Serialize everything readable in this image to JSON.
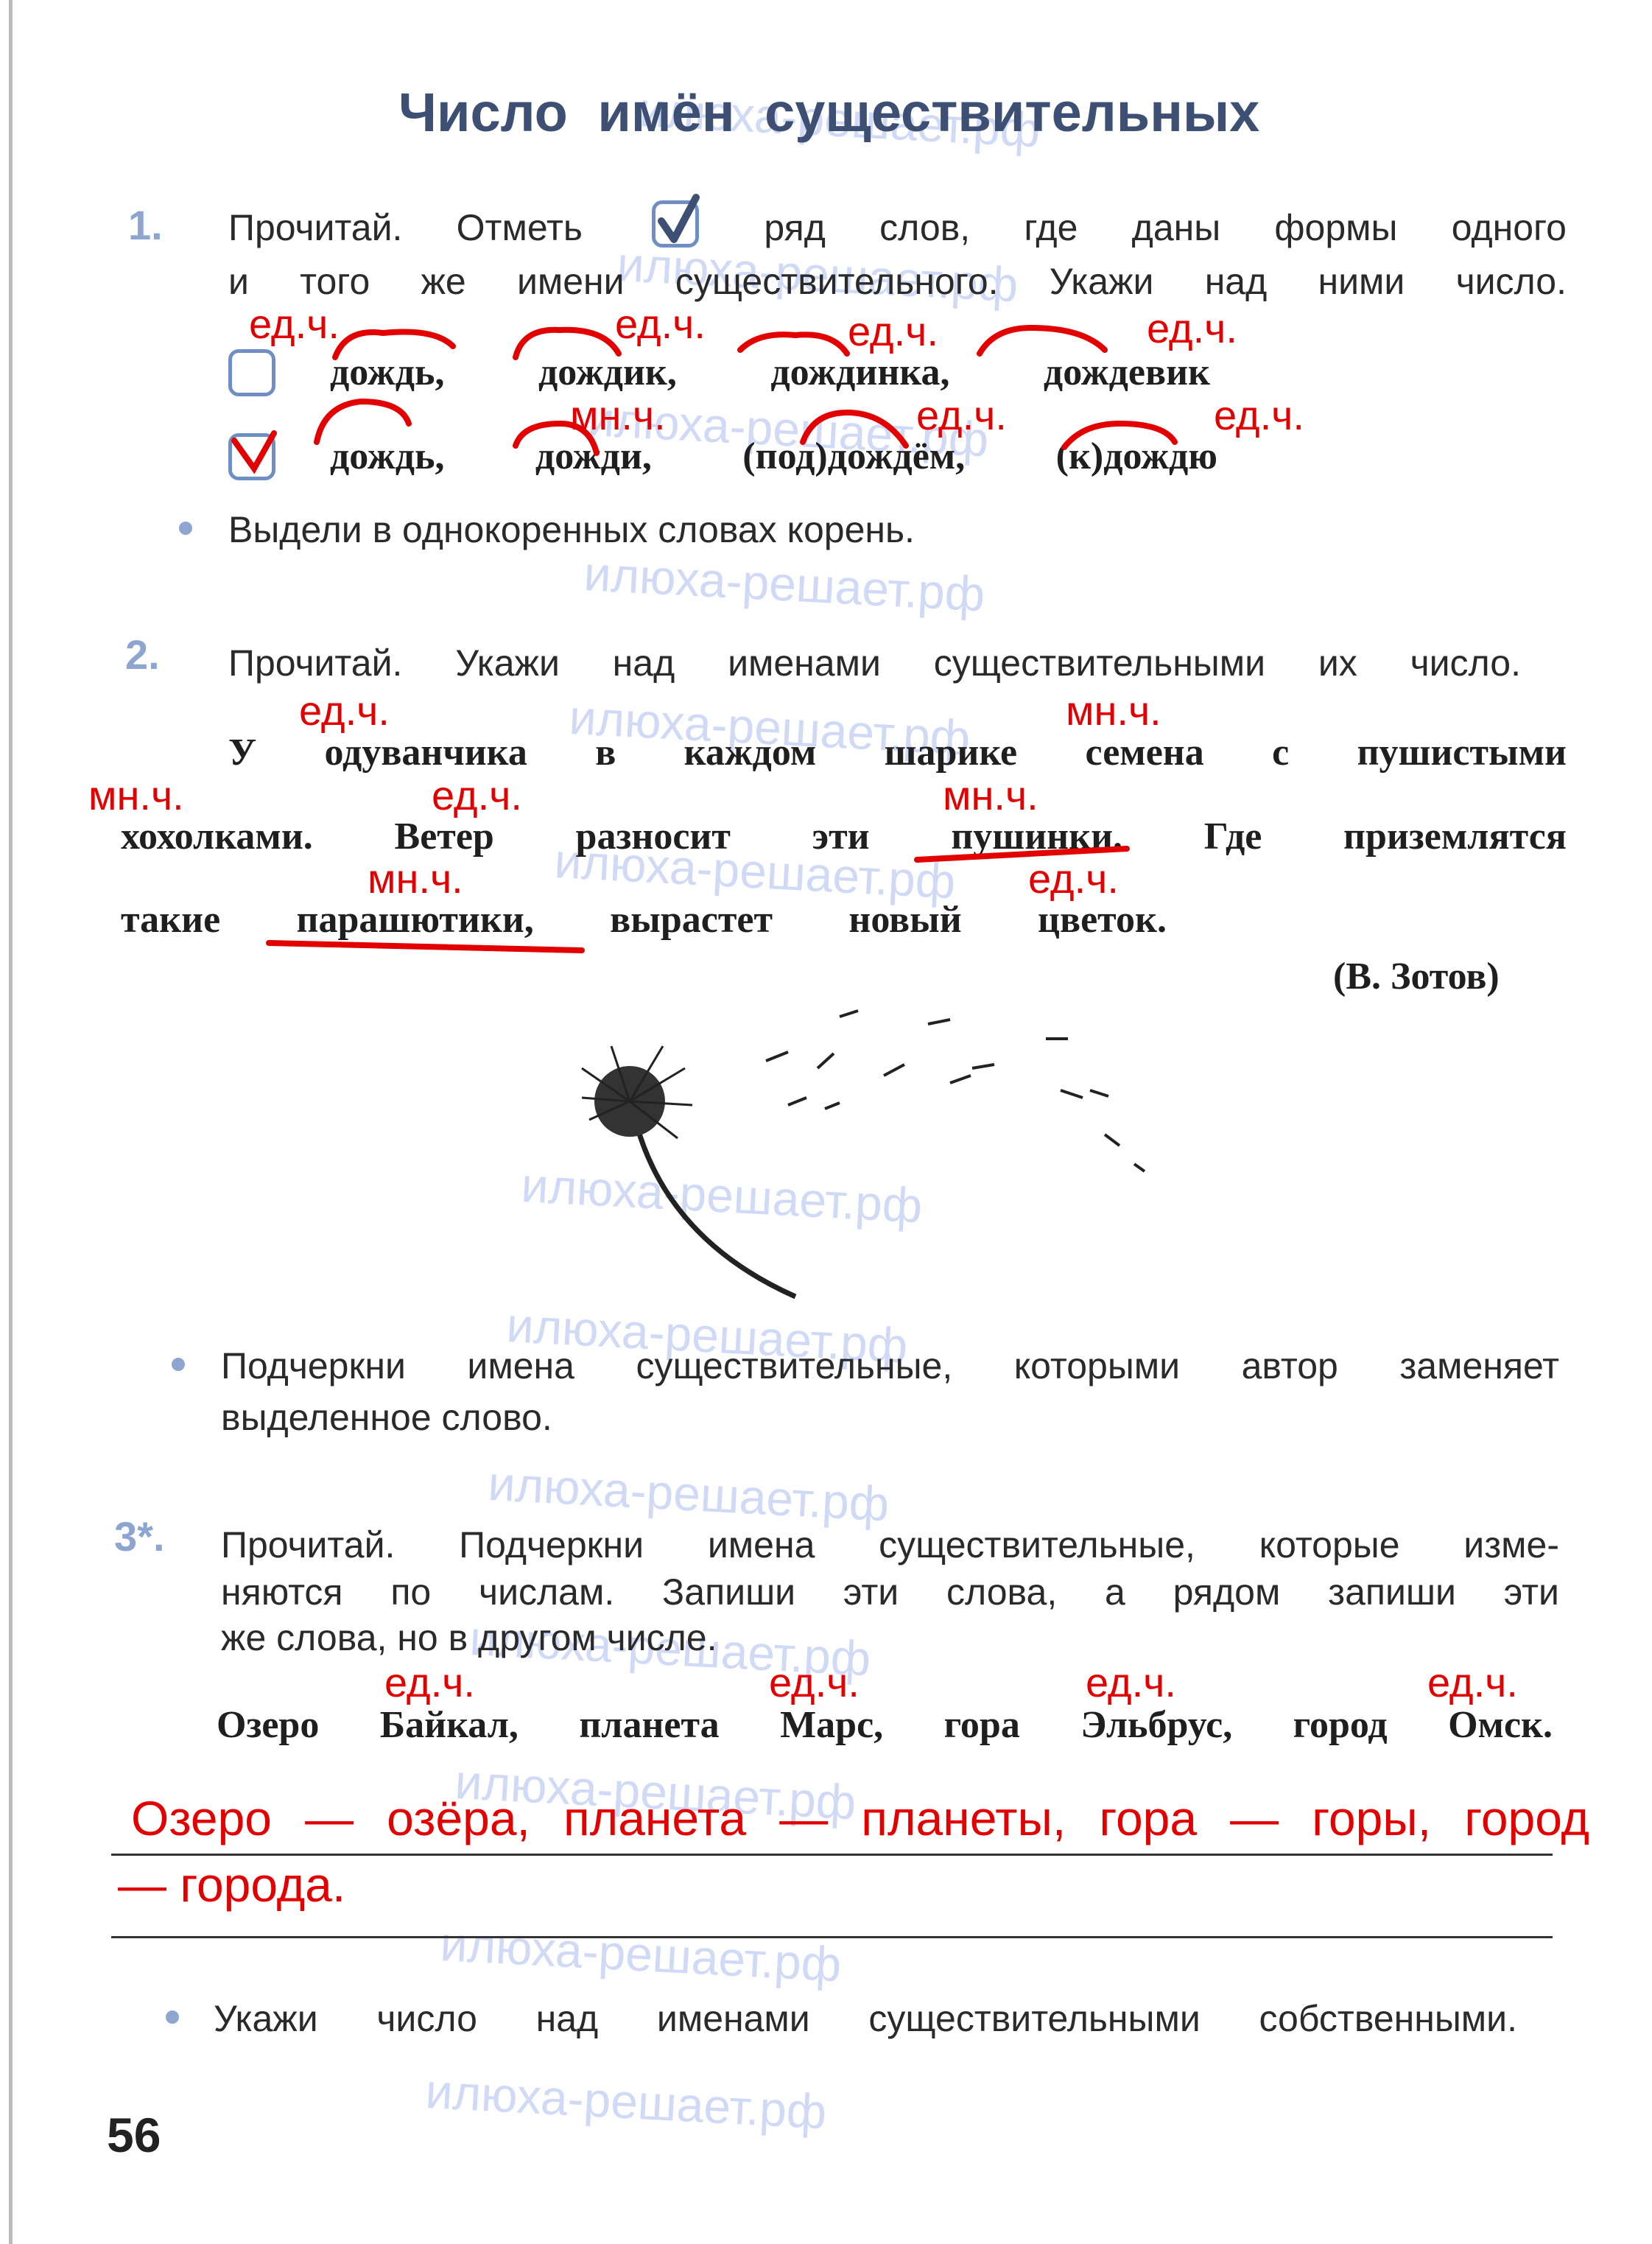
{
  "title": "Число имён существительных",
  "watermark": "илюха-решает.рф",
  "exercise1": {
    "number": "1.",
    "instruction_lines": [
      "Прочитай. Отметь    ряд слов, где даны формы одного",
      "и того же имени существительного. Укажи над ними число."
    ],
    "rows": [
      {
        "text": "дождь, дождик, дождинка, дождевик",
        "checked": false,
        "labels": [
          "ед.ч.",
          "ед.ч.",
          "ед.ч.",
          "ед.ч."
        ]
      },
      {
        "text": "дождь, дожди, (под)дождём, (к)дождю",
        "checked": true,
        "labels": [
          "мн.ч.",
          "ед.ч.",
          "ед.ч."
        ]
      }
    ],
    "bullet": "Выдели в однокоренных словах корень."
  },
  "exercise2": {
    "number": "2.",
    "instruction": "Прочитай. Укажи над именами существительными их число.",
    "story_lines": [
      "У одуванчика в каждом шарике семена с пушистыми",
      "хохолками. Ветер разносит эти пушинки. Где приземлятся",
      "такие парашютики, вырастет новый цветок."
    ],
    "labels": [
      "ед.ч.",
      "мн.ч.",
      "мн.ч.",
      "ед.ч.",
      "мн.ч.",
      "мн.ч.",
      "ед.ч."
    ],
    "author": "(В. Зотов)",
    "bullet_lines": [
      "Подчеркни имена существительные, которыми автор заменяет",
      "выделенное слово."
    ]
  },
  "exercise3": {
    "number": "3*.",
    "instruction_lines": [
      "Прочитай. Подчеркни имена существительные, которые изме-",
      "няются по числам. Запиши эти слова, а рядом запиши эти",
      "же слова, но в другом числе."
    ],
    "labels": [
      "ед.ч.",
      "ед.ч.",
      "ед.ч.",
      "ед.ч."
    ],
    "words_line": "Озеро Байкал, планета Марс, гора Эльбрус, город Омск.",
    "answer_lines": [
      "Озеро — озёра, планета — планеты, гора — горы, город",
      "— города."
    ],
    "bullet": "Укажи число над именами существительными собственными."
  },
  "page_number": "56",
  "colors": {
    "title": "#3d4f73",
    "accent": "#8ea6cf",
    "answer": "#e30000"
  }
}
